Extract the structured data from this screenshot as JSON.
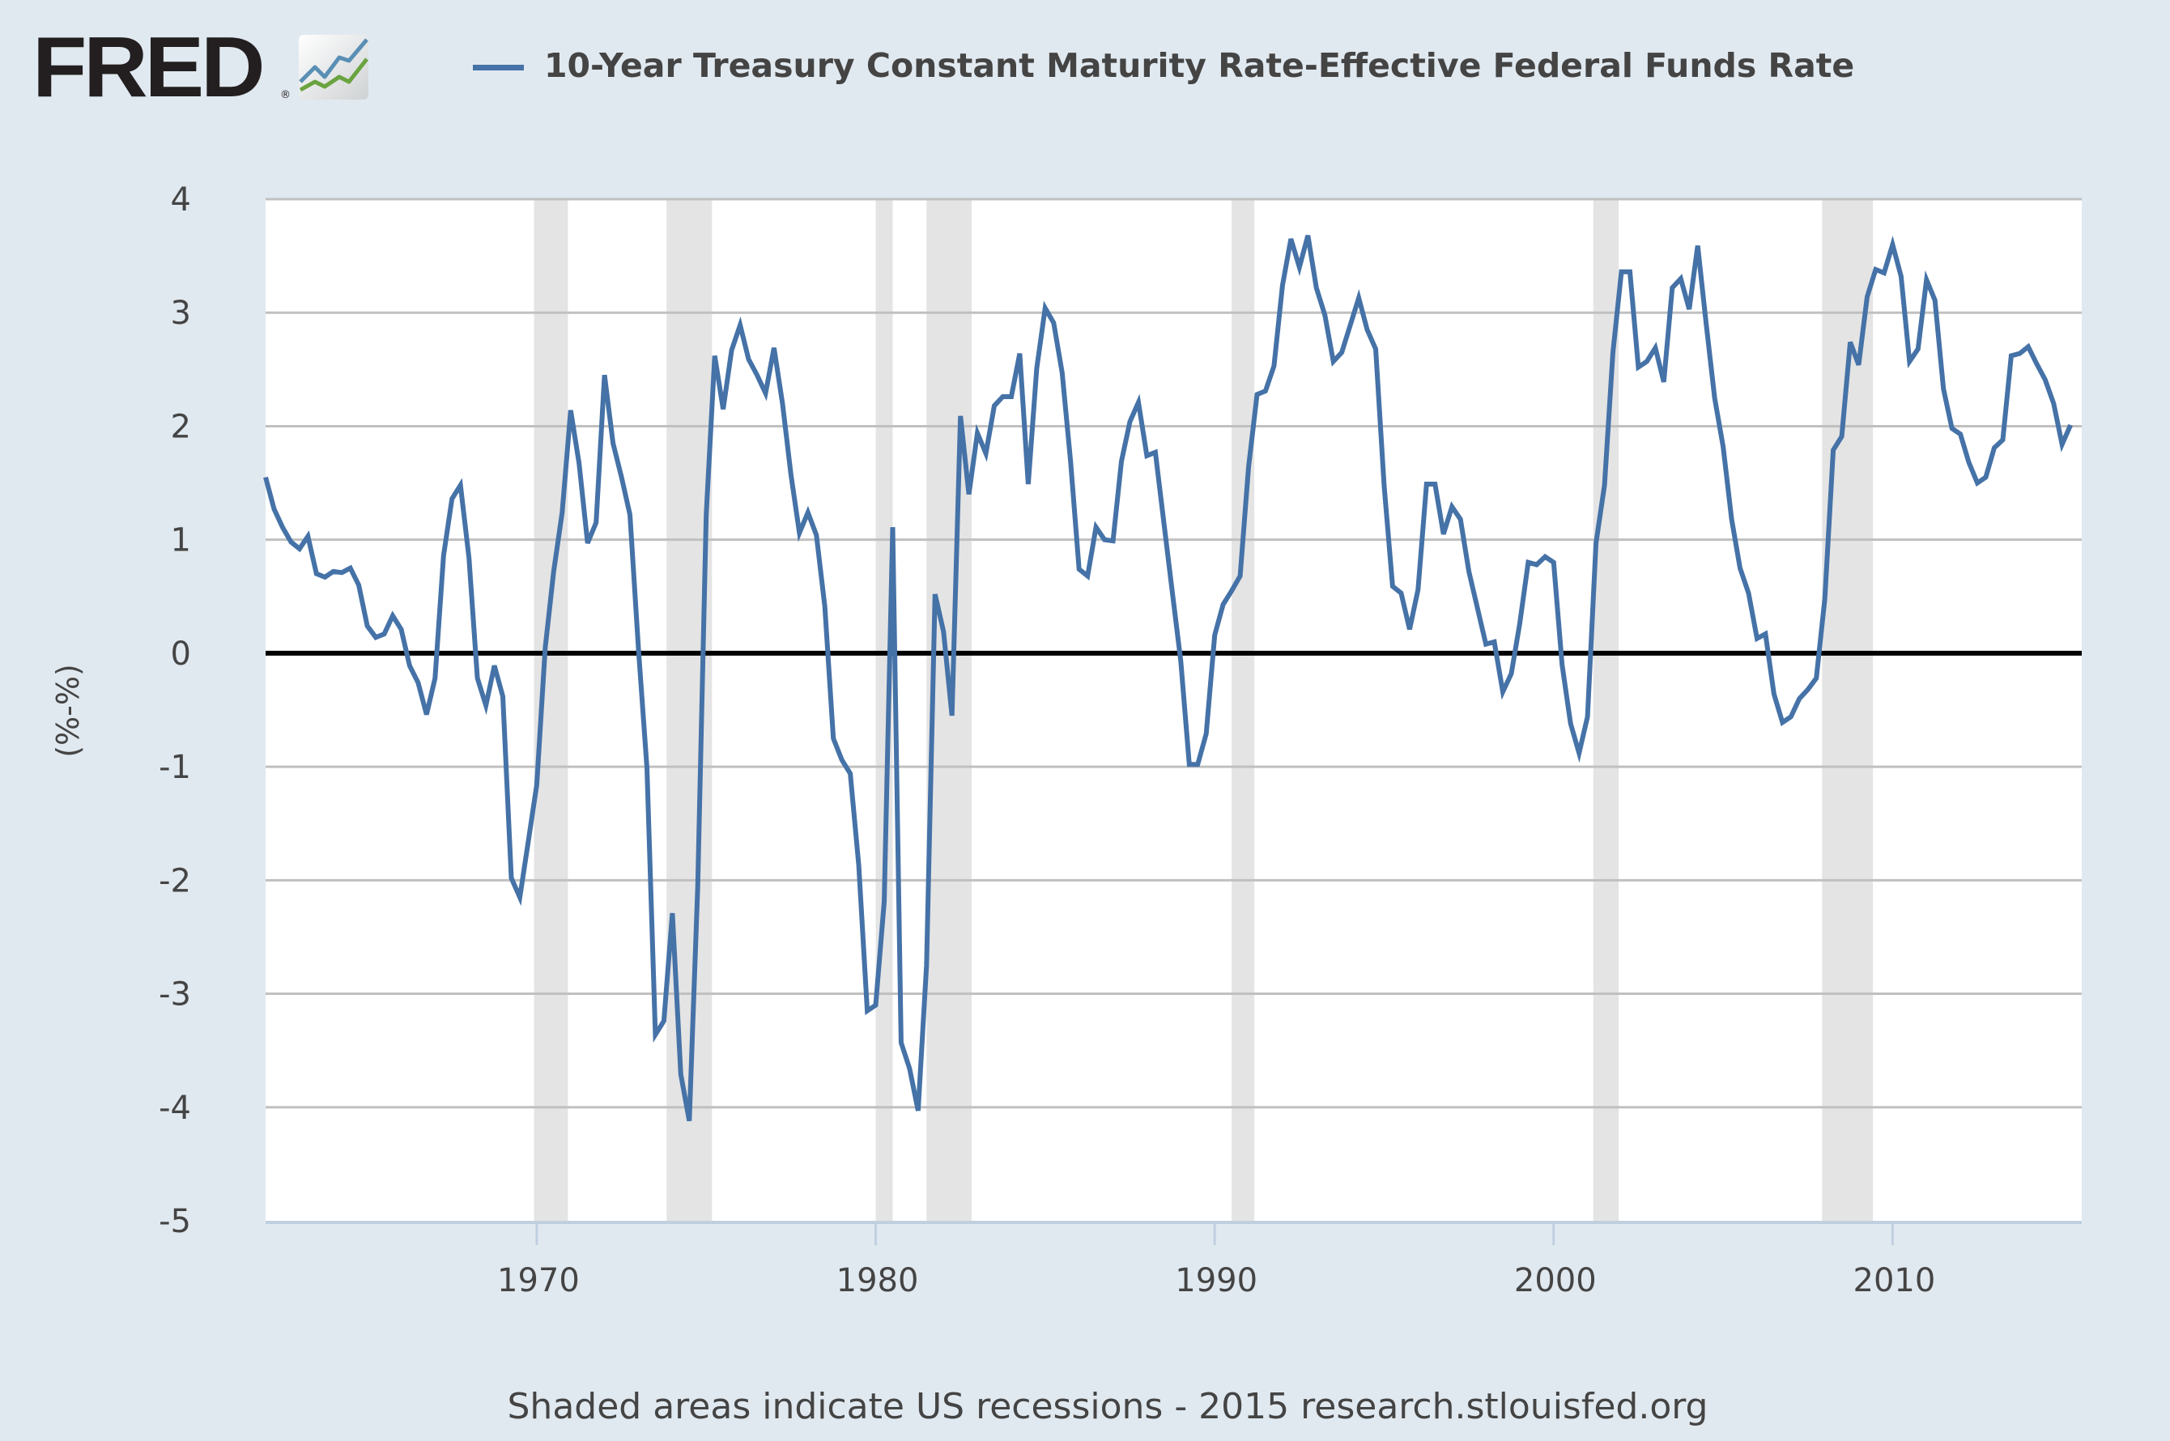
{
  "header": {
    "logo_text": "FRED",
    "logo_mark": "®",
    "logo_icon": "chart-line-icon",
    "legend_label": "10-Year Treasury Constant Maturity Rate-Effective Federal Funds Rate",
    "legend_color": "#4572a7"
  },
  "footer": {
    "text": "Shaded areas indicate US recessions - 2015 research.stlouisfed.org"
  },
  "chart_data": {
    "type": "line",
    "title": "10-Year Treasury Constant Maturity Rate-Effective Federal Funds Rate",
    "xlabel": "",
    "ylabel": "(%-%)",
    "xlim": [
      1962.0,
      2015.58
    ],
    "ylim": [
      -5,
      4
    ],
    "x_ticks": [
      1970,
      1980,
      1990,
      2000,
      2010
    ],
    "x_tick_labels": [
      "1970",
      "1980",
      "1990",
      "2000",
      "2010"
    ],
    "y_ticks": [
      -5,
      -4,
      -3,
      -2,
      -1,
      0,
      1,
      2,
      3,
      4
    ],
    "y_tick_labels": [
      "-5",
      "-4",
      "-3",
      "-2",
      "-1",
      "0",
      "1",
      "2",
      "3",
      "4"
    ],
    "grid": true,
    "zero_line": true,
    "legend_position": "top",
    "colors": {
      "series": "#4572a7",
      "recession": "#e4e4e4",
      "grid": "#c0c0c0",
      "zero": "#000000",
      "axis": "#c0cfe0",
      "plot_bg": "#ffffff",
      "page_bg": "#e1e9f0"
    },
    "recessions": [
      [
        1969.92,
        1970.92
      ],
      [
        1973.83,
        1975.17
      ],
      [
        1980.0,
        1980.5
      ],
      [
        1981.5,
        1982.83
      ],
      [
        1990.5,
        1991.17
      ],
      [
        2001.17,
        2001.92
      ],
      [
        2007.92,
        2009.42
      ]
    ],
    "x_start": 1962.0,
    "x_step": 0.25,
    "series": [
      {
        "name": "10-Year Treasury Constant Maturity Rate-Effective Federal Funds Rate",
        "frequency": "quarterly",
        "values": [
          1.55,
          1.27,
          1.11,
          0.98,
          0.92,
          1.03,
          0.7,
          0.67,
          0.72,
          0.71,
          0.75,
          0.6,
          0.24,
          0.14,
          0.17,
          0.33,
          0.21,
          -0.11,
          -0.26,
          -0.54,
          -0.22,
          0.86,
          1.36,
          1.48,
          0.84,
          -0.22,
          -0.46,
          -0.11,
          -0.38,
          -1.98,
          -2.15,
          -1.66,
          -1.16,
          0.05,
          0.72,
          1.24,
          2.14,
          1.67,
          0.97,
          1.15,
          2.45,
          1.85,
          1.55,
          1.22,
          0.04,
          -1.01,
          -3.36,
          -3.24,
          -2.29,
          -3.71,
          -4.12,
          -2.06,
          1.22,
          2.62,
          2.15,
          2.67,
          2.89,
          2.59,
          2.45,
          2.29,
          2.69,
          2.2,
          1.57,
          1.06,
          1.24,
          1.04,
          0.41,
          -0.75,
          -0.94,
          -1.06,
          -1.87,
          -3.15,
          -3.1,
          -2.19,
          1.11,
          -3.43,
          -3.66,
          -4.03,
          -2.75,
          0.52,
          0.19,
          -0.55,
          2.09,
          1.4,
          1.94,
          1.76,
          2.18,
          2.26,
          2.26,
          2.64,
          1.49,
          2.51,
          3.04,
          2.91,
          2.47,
          1.69,
          0.74,
          0.68,
          1.11,
          1.0,
          0.99,
          1.69,
          2.04,
          2.21,
          1.74,
          1.77,
          1.15,
          0.54,
          -0.07,
          -0.98,
          -0.98,
          -0.71,
          0.16,
          0.43,
          0.55,
          0.68,
          1.64,
          2.28,
          2.31,
          2.53,
          3.24,
          3.65,
          3.4,
          3.68,
          3.22,
          2.98,
          2.57,
          2.65,
          2.89,
          3.13,
          2.85,
          2.68,
          1.47,
          0.59,
          0.53,
          0.21,
          0.56,
          1.49,
          1.49,
          1.05,
          1.29,
          1.18,
          0.72,
          0.4,
          0.08,
          0.1,
          -0.34,
          -0.18,
          0.26,
          0.8,
          0.78,
          0.85,
          0.8,
          -0.1,
          -0.62,
          -0.88,
          -0.56,
          0.97,
          1.48,
          2.65,
          3.36,
          3.36,
          2.52,
          2.57,
          2.69,
          2.39,
          3.22,
          3.3,
          3.03,
          3.59,
          2.9,
          2.25,
          1.82,
          1.18,
          0.75,
          0.53,
          0.13,
          0.17,
          -0.36,
          -0.61,
          -0.56,
          -0.4,
          -0.32,
          -0.22,
          0.48,
          1.79,
          1.91,
          2.74,
          2.54,
          3.14,
          3.38,
          3.35,
          3.6,
          3.32,
          2.57,
          2.68,
          3.29,
          3.11,
          2.33,
          1.98,
          1.93,
          1.68,
          1.5,
          1.55,
          1.81,
          1.88,
          2.62,
          2.64,
          2.7,
          2.55,
          2.41,
          2.2,
          1.84,
          2.01
        ]
      }
    ]
  }
}
